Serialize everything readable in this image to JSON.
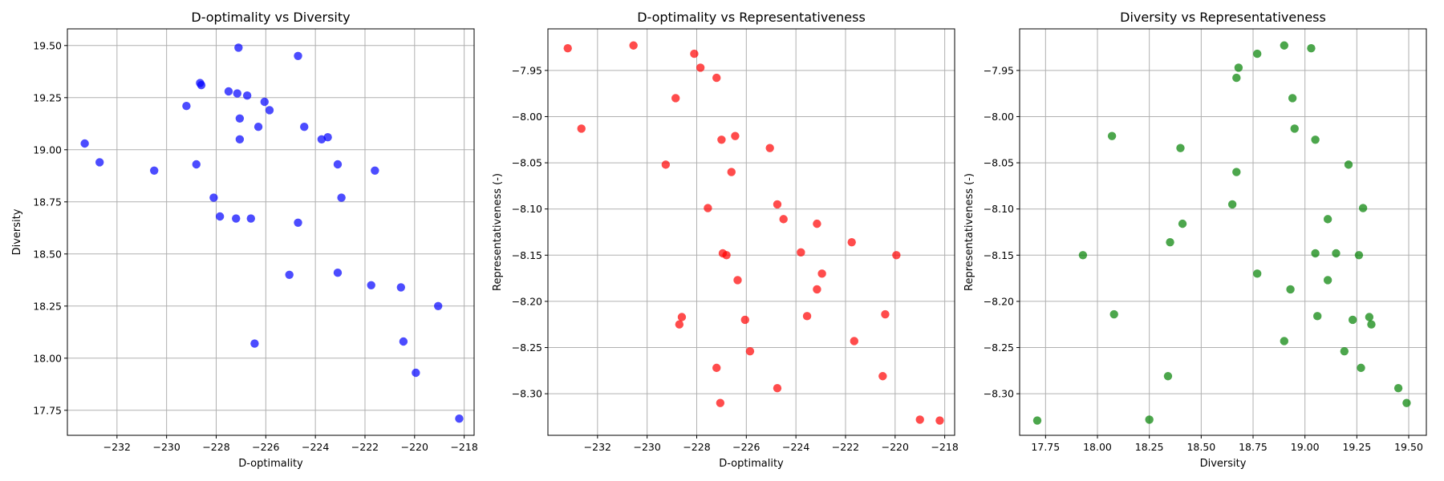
{
  "chart_data": [
    {
      "type": "scatter",
      "title": "D-optimality vs Diversity",
      "xlabel": "D-optimality",
      "ylabel": "Diversity",
      "xlim": [
        -234.0,
        -217.6
      ],
      "ylim": [
        17.63,
        19.58
      ],
      "xticks": [
        -232,
        -230,
        -228,
        -226,
        -224,
        -222,
        -220,
        -218
      ],
      "yticks": [
        17.75,
        18.0,
        18.25,
        18.5,
        18.75,
        19.0,
        19.25,
        19.5
      ],
      "xtick_labels": [
        "−232",
        "−230",
        "−228",
        "−226",
        "−224",
        "−222",
        "−220",
        "−218"
      ],
      "ytick_labels": [
        "17.75",
        "18.00",
        "18.25",
        "18.50",
        "18.75",
        "19.00",
        "19.25",
        "19.50"
      ],
      "grid": true,
      "color": "#0000ff",
      "points": [
        [
          -233.3,
          19.03
        ],
        [
          -232.7,
          18.94
        ],
        [
          -230.5,
          18.9
        ],
        [
          -229.2,
          19.21
        ],
        [
          -228.8,
          18.93
        ],
        [
          -228.65,
          19.32
        ],
        [
          -228.6,
          19.31
        ],
        [
          -228.1,
          18.77
        ],
        [
          -227.85,
          18.68
        ],
        [
          -227.5,
          19.28
        ],
        [
          -227.15,
          19.27
        ],
        [
          -227.2,
          18.67
        ],
        [
          -227.1,
          19.49
        ],
        [
          -227.05,
          19.15
        ],
        [
          -227.05,
          19.05
        ],
        [
          -226.75,
          19.26
        ],
        [
          -226.6,
          18.67
        ],
        [
          -226.45,
          18.07
        ],
        [
          -226.3,
          19.11
        ],
        [
          -226.05,
          19.23
        ],
        [
          -225.85,
          19.19
        ],
        [
          -225.05,
          18.4
        ],
        [
          -224.7,
          19.45
        ],
        [
          -224.7,
          18.65
        ],
        [
          -224.45,
          19.11
        ],
        [
          -223.75,
          19.05
        ],
        [
          -223.5,
          19.06
        ],
        [
          -223.1,
          18.93
        ],
        [
          -223.1,
          18.41
        ],
        [
          -222.95,
          18.77
        ],
        [
          -221.75,
          18.35
        ],
        [
          -221.6,
          18.9
        ],
        [
          -220.55,
          18.34
        ],
        [
          -220.45,
          18.08
        ],
        [
          -219.95,
          17.93
        ],
        [
          -219.05,
          18.25
        ],
        [
          -218.2,
          17.71
        ]
      ]
    },
    {
      "type": "scatter",
      "title": "D-optimality vs Representativeness",
      "xlabel": "D-optimality",
      "ylabel": "Representativeness (-)",
      "xlim": [
        -234.0,
        -217.6
      ],
      "ylim": [
        -8.345,
        -7.905
      ],
      "xticks": [
        -232,
        -230,
        -228,
        -226,
        -224,
        -222,
        -220,
        -218
      ],
      "yticks": [
        -8.3,
        -8.25,
        -8.2,
        -8.15,
        -8.1,
        -8.05,
        -8.0,
        -7.95
      ],
      "xtick_labels": [
        "−232",
        "−230",
        "−228",
        "−226",
        "−224",
        "−222",
        "−220",
        "−218"
      ],
      "ytick_labels": [
        "−8.30",
        "−8.25",
        "−8.20",
        "−8.15",
        "−8.10",
        "−8.05",
        "−8.00",
        "−7.95"
      ],
      "grid": true,
      "color": "#ff0000",
      "points": [
        [
          -233.2,
          -7.926
        ],
        [
          -232.65,
          -8.013
        ],
        [
          -230.55,
          -7.923
        ],
        [
          -229.25,
          -8.052
        ],
        [
          -228.85,
          -7.98
        ],
        [
          -228.7,
          -8.225
        ],
        [
          -228.6,
          -8.217
        ],
        [
          -228.1,
          -7.932
        ],
        [
          -227.85,
          -7.947
        ],
        [
          -227.55,
          -8.099
        ],
        [
          -227.2,
          -7.958
        ],
        [
          -227.2,
          -8.272
        ],
        [
          -227.05,
          -8.31
        ],
        [
          -227.0,
          -8.025
        ],
        [
          -226.95,
          -8.148
        ],
        [
          -226.8,
          -8.15
        ],
        [
          -226.6,
          -8.06
        ],
        [
          -226.45,
          -8.021
        ],
        [
          -226.35,
          -8.177
        ],
        [
          -226.05,
          -8.22
        ],
        [
          -225.85,
          -8.254
        ],
        [
          -225.05,
          -8.034
        ],
        [
          -224.75,
          -8.095
        ],
        [
          -224.75,
          -8.294
        ],
        [
          -224.5,
          -8.111
        ],
        [
          -223.8,
          -8.147
        ],
        [
          -223.55,
          -8.216
        ],
        [
          -223.15,
          -8.116
        ],
        [
          -223.15,
          -8.187
        ],
        [
          -222.95,
          -8.17
        ],
        [
          -221.75,
          -8.136
        ],
        [
          -221.65,
          -8.243
        ],
        [
          -220.5,
          -8.281
        ],
        [
          -220.4,
          -8.214
        ],
        [
          -219.95,
          -8.15
        ],
        [
          -219.0,
          -8.328
        ],
        [
          -218.2,
          -8.329
        ]
      ]
    },
    {
      "type": "scatter",
      "title": "Diversity vs Representativeness",
      "xlabel": "Diversity",
      "ylabel": "Representativeness (-)",
      "xlim": [
        17.625,
        19.585
      ],
      "ylim": [
        -8.345,
        -7.905
      ],
      "xticks": [
        17.75,
        18.0,
        18.25,
        18.5,
        18.75,
        19.0,
        19.25,
        19.5
      ],
      "yticks": [
        -8.3,
        -8.25,
        -8.2,
        -8.15,
        -8.1,
        -8.05,
        -8.0,
        -7.95
      ],
      "xtick_labels": [
        "17.75",
        "18.00",
        "18.25",
        "18.50",
        "18.75",
        "19.00",
        "19.25",
        "19.50"
      ],
      "ytick_labels": [
        "−8.30",
        "−8.25",
        "−8.20",
        "−8.15",
        "−8.10",
        "−8.05",
        "−8.00",
        "−7.95"
      ],
      "grid": true,
      "color": "#008000",
      "points": [
        [
          17.71,
          -8.329
        ],
        [
          17.93,
          -8.15
        ],
        [
          18.07,
          -8.021
        ],
        [
          18.08,
          -8.214
        ],
        [
          18.25,
          -8.328
        ],
        [
          18.34,
          -8.281
        ],
        [
          18.35,
          -8.136
        ],
        [
          18.4,
          -8.034
        ],
        [
          18.41,
          -8.116
        ],
        [
          18.65,
          -8.095
        ],
        [
          18.67,
          -8.06
        ],
        [
          18.67,
          -7.958
        ],
        [
          18.68,
          -7.947
        ],
        [
          18.77,
          -7.932
        ],
        [
          18.77,
          -8.17
        ],
        [
          18.9,
          -7.923
        ],
        [
          18.9,
          -8.243
        ],
        [
          18.93,
          -8.187
        ],
        [
          18.94,
          -7.98
        ],
        [
          18.95,
          -8.013
        ],
        [
          19.03,
          -7.926
        ],
        [
          19.05,
          -8.025
        ],
        [
          19.05,
          -8.148
        ],
        [
          19.06,
          -8.216
        ],
        [
          19.11,
          -8.111
        ],
        [
          19.11,
          -8.177
        ],
        [
          19.15,
          -8.148
        ],
        [
          19.19,
          -8.254
        ],
        [
          19.21,
          -8.052
        ],
        [
          19.23,
          -8.22
        ],
        [
          19.26,
          -8.15
        ],
        [
          19.27,
          -8.272
        ],
        [
          19.28,
          -8.099
        ],
        [
          19.31,
          -8.217
        ],
        [
          19.32,
          -8.225
        ],
        [
          19.45,
          -8.294
        ],
        [
          19.49,
          -8.31
        ]
      ]
    }
  ]
}
